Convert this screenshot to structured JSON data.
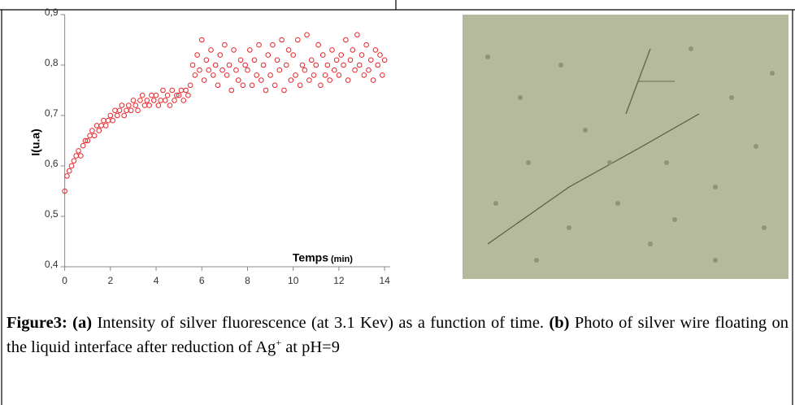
{
  "chart_data": {
    "type": "scatter",
    "ylabel": "I(u.a)",
    "xlabel": "Temps",
    "xlabel_unit": "(min)",
    "x": [
      0,
      0.1,
      0.2,
      0.3,
      0.4,
      0.5,
      0.6,
      0.7,
      0.8,
      0.9,
      1,
      1.1,
      1.2,
      1.3,
      1.4,
      1.5,
      1.6,
      1.7,
      1.8,
      1.9,
      2,
      2.1,
      2.2,
      2.3,
      2.4,
      2.5,
      2.6,
      2.7,
      2.8,
      2.9,
      3,
      3.1,
      3.2,
      3.3,
      3.4,
      3.5,
      3.6,
      3.7,
      3.8,
      3.9,
      4,
      4.1,
      4.2,
      4.3,
      4.4,
      4.5,
      4.6,
      4.7,
      4.8,
      4.9,
      5,
      5.1,
      5.2,
      5.3,
      5.4,
      5.5,
      5.6,
      5.7,
      5.8,
      5.9,
      6,
      6.1,
      6.2,
      6.3,
      6.4,
      6.5,
      6.6,
      6.7,
      6.8,
      6.9,
      7,
      7.1,
      7.2,
      7.3,
      7.4,
      7.5,
      7.6,
      7.7,
      7.8,
      7.9,
      8,
      8.1,
      8.2,
      8.3,
      8.4,
      8.5,
      8.6,
      8.7,
      8.8,
      8.9,
      9,
      9.1,
      9.2,
      9.3,
      9.4,
      9.5,
      9.6,
      9.7,
      9.8,
      9.9,
      10,
      10.1,
      10.2,
      10.3,
      10.4,
      10.5,
      10.6,
      10.7,
      10.8,
      10.9,
      11,
      11.1,
      11.2,
      11.3,
      11.4,
      11.5,
      11.6,
      11.7,
      11.8,
      11.9,
      12,
      12.1,
      12.2,
      12.3,
      12.4,
      12.5,
      12.6,
      12.7,
      12.8,
      12.9,
      13,
      13.1,
      13.2,
      13.3,
      13.4,
      13.5,
      13.6,
      13.7,
      13.8,
      13.9,
      14
    ],
    "series": [
      {
        "color": "#e8262a",
        "values": [
          0.55,
          0.58,
          0.59,
          0.6,
          0.61,
          0.62,
          0.63,
          0.62,
          0.64,
          0.65,
          0.65,
          0.66,
          0.67,
          0.66,
          0.68,
          0.67,
          0.68,
          0.69,
          0.68,
          0.69,
          0.7,
          0.69,
          0.71,
          0.7,
          0.71,
          0.72,
          0.7,
          0.71,
          0.72,
          0.71,
          0.73,
          0.72,
          0.71,
          0.73,
          0.74,
          0.72,
          0.73,
          0.72,
          0.74,
          0.73,
          0.74,
          0.72,
          0.73,
          0.75,
          0.73,
          0.74,
          0.72,
          0.75,
          0.73,
          0.74,
          0.74,
          0.75,
          0.73,
          0.75,
          0.74,
          0.76,
          0.8,
          0.78,
          0.82,
          0.79,
          0.85,
          0.77,
          0.81,
          0.79,
          0.83,
          0.78,
          0.8,
          0.76,
          0.82,
          0.79,
          0.84,
          0.78,
          0.8,
          0.75,
          0.83,
          0.79,
          0.77,
          0.81,
          0.76,
          0.8,
          0.79,
          0.83,
          0.76,
          0.81,
          0.78,
          0.84,
          0.77,
          0.8,
          0.75,
          0.82,
          0.78,
          0.84,
          0.76,
          0.81,
          0.79,
          0.85,
          0.75,
          0.8,
          0.83,
          0.77,
          0.82,
          0.78,
          0.85,
          0.76,
          0.8,
          0.79,
          0.86,
          0.77,
          0.81,
          0.78,
          0.8,
          0.84,
          0.76,
          0.82,
          0.78,
          0.8,
          0.77,
          0.83,
          0.79,
          0.81,
          0.78,
          0.82,
          0.8,
          0.85,
          0.77,
          0.81,
          0.83,
          0.79,
          0.86,
          0.8,
          0.82,
          0.78,
          0.84,
          0.79,
          0.81,
          0.77,
          0.83,
          0.8,
          0.82,
          0.78,
          0.81
        ]
      }
    ],
    "xlim": [
      -0.2,
      14.6
    ],
    "xticks": [
      0,
      2,
      4,
      6,
      8,
      10,
      12,
      14
    ],
    "ylim": [
      0.4,
      0.9
    ],
    "yticks": [
      {
        "value": 0.4,
        "label": "0,4"
      },
      {
        "value": 0.5,
        "label": "0,5"
      },
      {
        "value": 0.6,
        "label": "0,6"
      },
      {
        "value": 0.7,
        "label": "0,7"
      },
      {
        "value": 0.8,
        "label": "0,8"
      },
      {
        "value": 0.9,
        "label": "0,9"
      }
    ],
    "grid": false
  },
  "caption": {
    "label": "Figure3:",
    "a_marker": "(a)",
    "a_text": "Intensity of silver fluorescence (at 3.1 Kev) as a function of time.",
    "b_marker": "(b)",
    "b_text": "Photo of silver wire floating on the liquid interface after reduction of Ag",
    "b_superscript": "+",
    "b_text_end": "at pH=9"
  }
}
